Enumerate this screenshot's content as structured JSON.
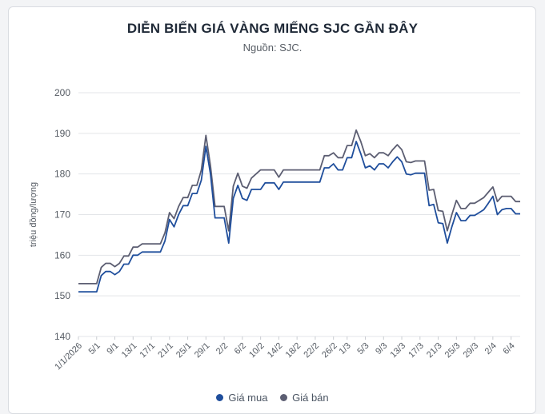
{
  "chart_data": {
    "type": "line",
    "title": "DIỄN BIẾN GIÁ VÀNG MIẾNG SJC GẦN ĐÂY",
    "subtitle": "Nguồn: SJC.",
    "ylabel": "triệu đồng/lượng",
    "xlabel": "",
    "ylim": [
      140,
      200
    ],
    "yticks": [
      140,
      150,
      160,
      170,
      180,
      190,
      200
    ],
    "grid": true,
    "legend": "bottom",
    "x_tick_labels": [
      "1/1/2026",
      "5/1",
      "9/1",
      "13/1",
      "17/1",
      "21/1",
      "25/1",
      "29/1",
      "2/2",
      "6/2",
      "10/2",
      "14/2",
      "18/2",
      "22/2",
      "26/2",
      "1/3",
      "5/3",
      "9/3",
      "13/3",
      "17/3",
      "21/3",
      "25/3",
      "29/3",
      "2/4",
      "6/4"
    ],
    "x_days": [
      0,
      4,
      8,
      12,
      16,
      20,
      24,
      28,
      32,
      36,
      40,
      44,
      48,
      52,
      56,
      59,
      63,
      67,
      71,
      75,
      79,
      83,
      87,
      91,
      95
    ],
    "series": [
      {
        "name": "Giá mua",
        "color": "#1f4e9c",
        "points": [
          [
            0,
            151
          ],
          [
            1,
            151
          ],
          [
            2,
            151
          ],
          [
            3,
            151
          ],
          [
            4,
            151
          ],
          [
            5,
            155
          ],
          [
            6,
            156
          ],
          [
            7,
            156
          ],
          [
            8,
            155.2
          ],
          [
            9,
            156
          ],
          [
            10,
            157.8
          ],
          [
            11,
            157.8
          ],
          [
            12,
            160
          ],
          [
            13,
            160
          ],
          [
            14,
            160.8
          ],
          [
            15,
            160.8
          ],
          [
            16,
            160.8
          ],
          [
            17,
            160.8
          ],
          [
            18,
            160.8
          ],
          [
            19,
            163.5
          ],
          [
            20,
            168.8
          ],
          [
            21,
            167
          ],
          [
            22,
            170
          ],
          [
            23,
            172.2
          ],
          [
            24,
            172.2
          ],
          [
            25,
            175.2
          ],
          [
            26,
            175.2
          ],
          [
            27,
            178.5
          ],
          [
            28,
            186.8
          ],
          [
            29,
            180
          ],
          [
            30,
            169.2
          ],
          [
            31,
            169.2
          ],
          [
            32,
            169.2
          ],
          [
            33,
            163
          ],
          [
            34,
            174
          ],
          [
            35,
            177.2
          ],
          [
            36,
            174
          ],
          [
            37,
            173.5
          ],
          [
            38,
            176.2
          ],
          [
            39,
            176.2
          ],
          [
            40,
            176.2
          ],
          [
            41,
            177.8
          ],
          [
            42,
            177.8
          ],
          [
            43,
            177.8
          ],
          [
            44,
            176.2
          ],
          [
            45,
            178
          ],
          [
            46,
            178
          ],
          [
            47,
            178
          ],
          [
            48,
            178
          ],
          [
            49,
            178
          ],
          [
            50,
            178
          ],
          [
            51,
            178
          ],
          [
            52,
            178
          ],
          [
            53,
            178
          ],
          [
            54,
            181.5
          ],
          [
            55,
            181.5
          ],
          [
            56,
            182.5
          ],
          [
            57,
            181
          ],
          [
            58,
            181
          ],
          [
            59,
            184
          ],
          [
            60,
            184
          ],
          [
            61,
            188
          ],
          [
            62,
            185
          ],
          [
            63,
            181.5
          ],
          [
            64,
            182
          ],
          [
            65,
            181
          ],
          [
            66,
            182.5
          ],
          [
            67,
            182.5
          ],
          [
            68,
            181.5
          ],
          [
            69,
            183
          ],
          [
            70,
            184.2
          ],
          [
            71,
            183
          ],
          [
            72,
            180
          ],
          [
            73,
            179.8
          ],
          [
            74,
            180.2
          ],
          [
            75,
            180.2
          ],
          [
            76,
            180.2
          ],
          [
            77,
            172.2
          ],
          [
            78,
            172.5
          ],
          [
            79,
            168
          ],
          [
            80,
            167.8
          ],
          [
            81,
            163
          ],
          [
            82,
            167
          ],
          [
            83,
            170.5
          ],
          [
            84,
            168.5
          ],
          [
            85,
            168.5
          ],
          [
            86,
            169.8
          ],
          [
            87,
            169.8
          ],
          [
            88,
            170.5
          ],
          [
            89,
            171.2
          ],
          [
            90,
            172.8
          ],
          [
            91,
            174.5
          ],
          [
            92,
            170
          ],
          [
            93,
            171.2
          ],
          [
            94,
            171.5
          ],
          [
            95,
            171.5
          ],
          [
            96,
            170.2
          ],
          [
            97,
            170.2
          ]
        ]
      },
      {
        "name": "Giá bán",
        "color": "#5c5e72",
        "points": [
          [
            0,
            153
          ],
          [
            1,
            153
          ],
          [
            2,
            153
          ],
          [
            3,
            153
          ],
          [
            4,
            153
          ],
          [
            5,
            157
          ],
          [
            6,
            158
          ],
          [
            7,
            158
          ],
          [
            8,
            157.2
          ],
          [
            9,
            158
          ],
          [
            10,
            159.8
          ],
          [
            11,
            159.8
          ],
          [
            12,
            162
          ],
          [
            13,
            162
          ],
          [
            14,
            162.8
          ],
          [
            15,
            162.8
          ],
          [
            16,
            162.8
          ],
          [
            17,
            162.8
          ],
          [
            18,
            162.8
          ],
          [
            19,
            165.5
          ],
          [
            20,
            170.5
          ],
          [
            21,
            169
          ],
          [
            22,
            172
          ],
          [
            23,
            174.2
          ],
          [
            24,
            174.2
          ],
          [
            25,
            177.2
          ],
          [
            26,
            177.2
          ],
          [
            27,
            181
          ],
          [
            28,
            189.5
          ],
          [
            29,
            182
          ],
          [
            30,
            172
          ],
          [
            31,
            172
          ],
          [
            32,
            172
          ],
          [
            33,
            166
          ],
          [
            34,
            177
          ],
          [
            35,
            180.2
          ],
          [
            36,
            177
          ],
          [
            37,
            176.5
          ],
          [
            38,
            179
          ],
          [
            39,
            180
          ],
          [
            40,
            181
          ],
          [
            41,
            181
          ],
          [
            42,
            181
          ],
          [
            43,
            181
          ],
          [
            44,
            179.2
          ],
          [
            45,
            181
          ],
          [
            46,
            181
          ],
          [
            47,
            181
          ],
          [
            48,
            181
          ],
          [
            49,
            181
          ],
          [
            50,
            181
          ],
          [
            51,
            181
          ],
          [
            52,
            181
          ],
          [
            53,
            181
          ],
          [
            54,
            184.5
          ],
          [
            55,
            184.5
          ],
          [
            56,
            185.2
          ],
          [
            57,
            184
          ],
          [
            58,
            184
          ],
          [
            59,
            187
          ],
          [
            60,
            187
          ],
          [
            61,
            190.8
          ],
          [
            62,
            188
          ],
          [
            63,
            184.5
          ],
          [
            64,
            185
          ],
          [
            65,
            184
          ],
          [
            66,
            185.2
          ],
          [
            67,
            185.2
          ],
          [
            68,
            184.5
          ],
          [
            69,
            186
          ],
          [
            70,
            187.2
          ],
          [
            71,
            186
          ],
          [
            72,
            183
          ],
          [
            73,
            182.8
          ],
          [
            74,
            183.2
          ],
          [
            75,
            183.2
          ],
          [
            76,
            183.2
          ],
          [
            77,
            176
          ],
          [
            78,
            176.2
          ],
          [
            79,
            171
          ],
          [
            80,
            170.8
          ],
          [
            81,
            166
          ],
          [
            82,
            170
          ],
          [
            83,
            173.5
          ],
          [
            84,
            171.5
          ],
          [
            85,
            171.5
          ],
          [
            86,
            172.8
          ],
          [
            87,
            172.8
          ],
          [
            88,
            173.5
          ],
          [
            89,
            174.2
          ],
          [
            90,
            175.5
          ],
          [
            91,
            176.8
          ],
          [
            92,
            173.2
          ],
          [
            93,
            174.5
          ],
          [
            94,
            174.5
          ],
          [
            95,
            174.5
          ],
          [
            96,
            173.2
          ],
          [
            97,
            173.2
          ]
        ]
      }
    ]
  }
}
